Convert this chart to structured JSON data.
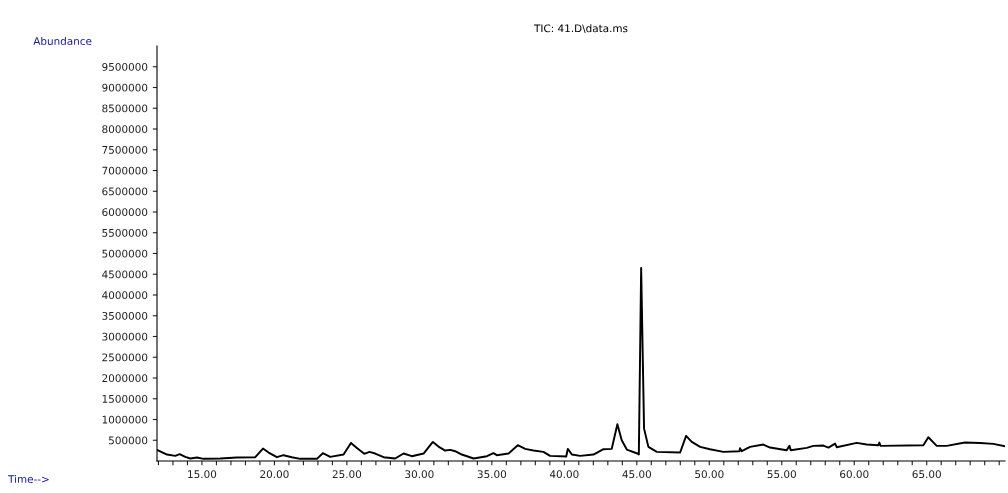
{
  "chart_data": {
    "type": "line",
    "title": "TIC: 41.D\\data.ms",
    "annotations": [
      "Time-->"
    ],
    "ylabel": "Abundance",
    "xlim": [
      11.9,
      70.4
    ],
    "ylim": [
      0,
      10000000
    ],
    "xticks": [
      {
        "value": 12,
        "label": null
      },
      {
        "value": 13,
        "label": null
      },
      {
        "value": 14,
        "label": null
      },
      {
        "value": 15,
        "label": "15.00"
      },
      {
        "value": 16,
        "label": null
      },
      {
        "value": 17,
        "label": null
      },
      {
        "value": 18,
        "label": null
      },
      {
        "value": 19,
        "label": null
      },
      {
        "value": 20,
        "label": "20.00"
      },
      {
        "value": 21,
        "label": null
      },
      {
        "value": 22,
        "label": null
      },
      {
        "value": 23,
        "label": null
      },
      {
        "value": 24,
        "label": null
      },
      {
        "value": 25,
        "label": "25.00"
      },
      {
        "value": 26,
        "label": null
      },
      {
        "value": 27,
        "label": null
      },
      {
        "value": 28,
        "label": null
      },
      {
        "value": 29,
        "label": null
      },
      {
        "value": 30,
        "label": "30.00"
      },
      {
        "value": 31,
        "label": null
      },
      {
        "value": 32,
        "label": null
      },
      {
        "value": 33,
        "label": null
      },
      {
        "value": 34,
        "label": null
      },
      {
        "value": 35,
        "label": "35.00"
      },
      {
        "value": 36,
        "label": null
      },
      {
        "value": 37,
        "label": null
      },
      {
        "value": 38,
        "label": null
      },
      {
        "value": 39,
        "label": null
      },
      {
        "value": 40,
        "label": "40.00"
      },
      {
        "value": 41,
        "label": null
      },
      {
        "value": 42,
        "label": null
      },
      {
        "value": 43,
        "label": null
      },
      {
        "value": 44,
        "label": null
      },
      {
        "value": 45,
        "label": "45.00"
      },
      {
        "value": 46,
        "label": null
      },
      {
        "value": 47,
        "label": null
      },
      {
        "value": 48,
        "label": null
      },
      {
        "value": 49,
        "label": null
      },
      {
        "value": 50,
        "label": "50.00"
      },
      {
        "value": 51,
        "label": null
      },
      {
        "value": 52,
        "label": null
      },
      {
        "value": 53,
        "label": null
      },
      {
        "value": 54,
        "label": null
      },
      {
        "value": 55,
        "label": "55.00"
      },
      {
        "value": 56,
        "label": null
      },
      {
        "value": 57,
        "label": null
      },
      {
        "value": 58,
        "label": null
      },
      {
        "value": 59,
        "label": null
      },
      {
        "value": 60,
        "label": "60.00"
      },
      {
        "value": 61,
        "label": null
      },
      {
        "value": 62,
        "label": null
      },
      {
        "value": 63,
        "label": null
      },
      {
        "value": 64,
        "label": null
      },
      {
        "value": 65,
        "label": "65.00"
      },
      {
        "value": 66,
        "label": null
      },
      {
        "value": 67,
        "label": null
      },
      {
        "value": 68,
        "label": null
      },
      {
        "value": 69,
        "label": null
      },
      {
        "value": 70,
        "label": null
      }
    ],
    "yticks": [
      500000,
      1000000,
      1500000,
      2000000,
      2500000,
      3000000,
      3500000,
      4000000,
      4500000,
      5000000,
      5500000,
      6000000,
      6500000,
      7000000,
      7500000,
      8000000,
      8500000,
      9000000,
      9500000
    ],
    "grid": false,
    "legend": false,
    "marker": "none",
    "line_style": "solid",
    "series": [
      {
        "color": "#000000",
        "x": [
          11.94,
          12.59,
          13.16,
          13.46,
          13.85,
          14.2,
          14.66,
          15.11,
          16.26,
          17.41,
          18.68,
          19.21,
          19.6,
          20.17,
          20.63,
          21.2,
          21.78,
          22.93,
          23.34,
          23.85,
          24.77,
          25.28,
          25.69,
          26.2,
          26.56,
          26.95,
          27.53,
          28.33,
          28.91,
          29.48,
          30.29,
          30.93,
          31.32,
          31.78,
          32.13,
          32.47,
          32.93,
          33.74,
          34.66,
          35.11,
          35.34,
          36.15,
          36.79,
          37.3,
          37.87,
          38.56,
          39.02,
          40.13,
          40.24,
          40.52,
          41.09,
          42.01,
          42.7,
          43.27,
          43.66,
          43.96,
          44.31,
          45.04,
          45.14,
          45.3,
          45.5,
          45.8,
          46.38,
          47.99,
          48.4,
          48.79,
          49.37,
          50.05,
          50.97,
          52.08,
          52.12,
          52.24,
          52.81,
          53.73,
          54.19,
          55.34,
          55.53,
          55.62,
          56.72,
          57.18,
          57.87,
          58.22,
          58.68,
          58.79,
          60.17,
          60.86,
          61.66,
          61.73,
          61.82,
          64.77,
          65.11,
          65.69,
          66.38,
          67.64,
          68.68,
          69.6,
          70.4
        ],
        "values": [
          260000,
          156000,
          124000,
          164000,
          100000,
          60000,
          84000,
          52000,
          60000,
          84000,
          92000,
          300000,
          204000,
          92000,
          140000,
          92000,
          52000,
          52000,
          188000,
          100000,
          156000,
          436000,
          316000,
          172000,
          220000,
          180000,
          92000,
          60000,
          180000,
          116000,
          180000,
          460000,
          348000,
          252000,
          268000,
          236000,
          156000,
          60000,
          116000,
          188000,
          140000,
          180000,
          380000,
          292000,
          252000,
          220000,
          124000,
          108000,
          292000,
          156000,
          124000,
          156000,
          284000,
          292000,
          884000,
          500000,
          276000,
          180000,
          156000,
          4650000,
          780000,
          340000,
          220000,
          204000,
          604000,
          460000,
          340000,
          284000,
          220000,
          236000,
          308000,
          236000,
          340000,
          396000,
          324000,
          260000,
          364000,
          260000,
          316000,
          364000,
          372000,
          324000,
          420000,
          332000,
          436000,
          396000,
          380000,
          444000,
          364000,
          380000,
          572000,
          364000,
          364000,
          444000,
          436000,
          412000,
          356000
        ]
      }
    ]
  }
}
